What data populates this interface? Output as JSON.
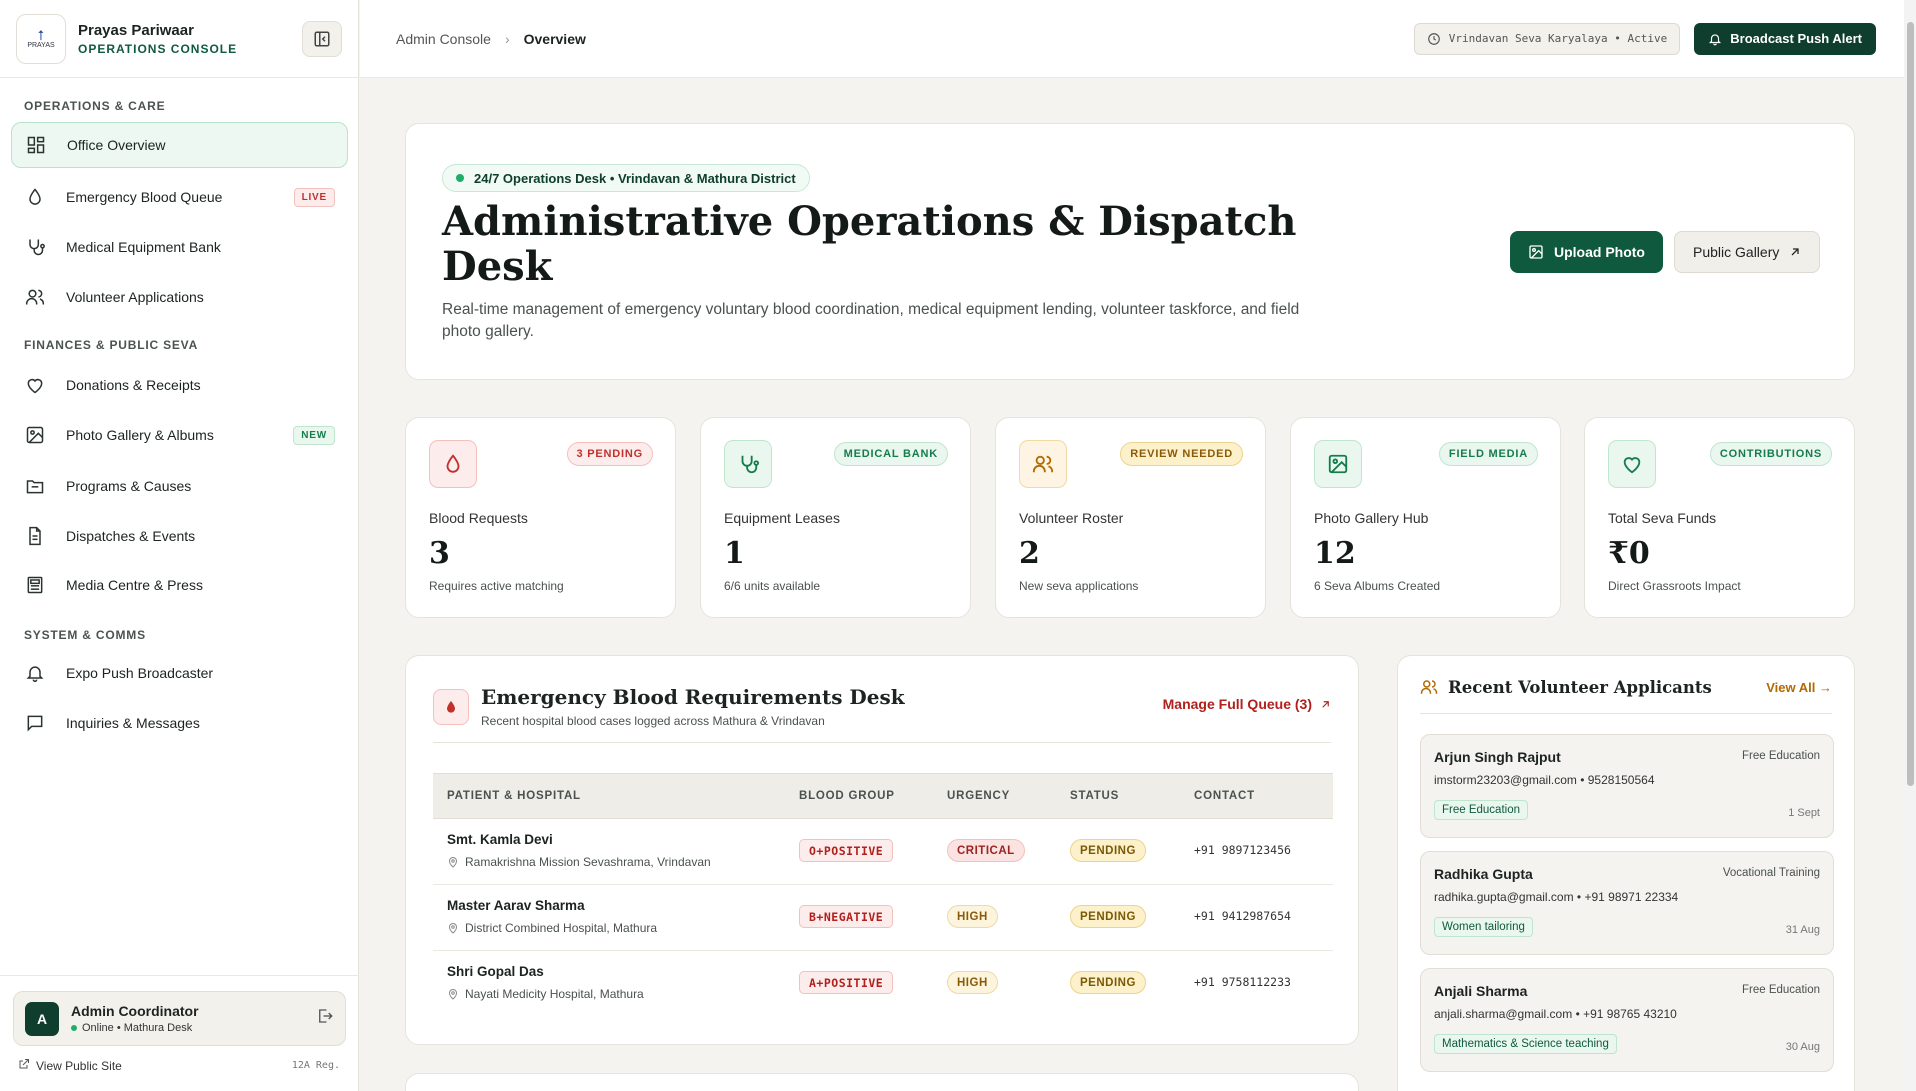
{
  "brand": {
    "name": "Prayas Pariwaar",
    "subtitle": "OPERATIONS CONSOLE",
    "logo_text": "PRAYAS"
  },
  "sidebar": {
    "sections": [
      "OPERATIONS & CARE",
      "FINANCES & PUBLIC SEVA",
      "SYSTEM & COMMS"
    ],
    "items": [
      {
        "label": "Office Overview",
        "icon": "grid-icon",
        "active": true
      },
      {
        "label": "Emergency Blood Queue",
        "icon": "droplet-icon",
        "badge": "LIVE"
      },
      {
        "label": "Medical Equipment Bank",
        "icon": "stethoscope-icon"
      },
      {
        "label": "Volunteer Applications",
        "icon": "users-icon"
      },
      {
        "label": "Donations & Receipts",
        "icon": "heart-icon"
      },
      {
        "label": "Photo Gallery & Albums",
        "icon": "image-icon",
        "badge": "NEW"
      },
      {
        "label": "Programs & Causes",
        "icon": "folder-icon"
      },
      {
        "label": "Dispatches & Events",
        "icon": "document-icon"
      },
      {
        "label": "Media Centre & Press",
        "icon": "newspaper-icon"
      },
      {
        "label": "Expo Push Broadcaster",
        "icon": "bell-icon"
      },
      {
        "label": "Inquiries & Messages",
        "icon": "message-icon"
      }
    ],
    "user": {
      "initial": "A",
      "name": "Admin Coordinator",
      "status": "Online • Mathura Desk"
    },
    "footer": {
      "link": "View Public Site",
      "reg": "12A Reg."
    }
  },
  "topbar": {
    "breadcrumb": [
      "Admin Console",
      "Overview"
    ],
    "office_status": "Vrindavan Seva Karyalaya • Active",
    "broadcast_label": "Broadcast Push Alert"
  },
  "hero": {
    "chip": "24/7 Operations Desk • Vrindavan & Mathura District",
    "title": "Administrative Operations & Dispatch Desk",
    "description": "Real-time management of emergency voluntary blood coordination, medical equipment lending, volunteer taskforce, and field photo gallery.",
    "upload_label": "Upload Photo",
    "gallery_label": "Public Gallery"
  },
  "stats": [
    {
      "tag": "3 PENDING",
      "label": "Blood Requests",
      "value": "3",
      "sub": "Requires active matching",
      "icon": "droplet-icon",
      "accent": "#c0312c"
    },
    {
      "tag": "MEDICAL BANK",
      "label": "Equipment Leases",
      "value": "1",
      "sub": "6/6 units available",
      "icon": "stethoscope-icon",
      "accent": "#167c4c"
    },
    {
      "tag": "REVIEW NEEDED",
      "label": "Volunteer Roster",
      "value": "2",
      "sub": "New seva applications",
      "icon": "users-icon",
      "accent": "#b26a00"
    },
    {
      "tag": "FIELD MEDIA",
      "label": "Photo Gallery Hub",
      "value": "12",
      "sub": "6 Seva Albums Created",
      "icon": "image-icon",
      "accent": "#167c4c"
    },
    {
      "tag": "CONTRIBUTIONS",
      "label": "Total Seva Funds",
      "value": "₹0",
      "sub": "Direct Grassroots Impact",
      "icon": "heart-icon",
      "accent": "#167c4c"
    }
  ],
  "blood_desk": {
    "title": "Emergency Blood Requirements Desk",
    "subtitle": "Recent hospital blood cases logged across Mathura & Vrindavan",
    "manage_label": "Manage Full Queue (3)",
    "columns": [
      "PATIENT & HOSPITAL",
      "BLOOD GROUP",
      "URGENCY",
      "STATUS",
      "CONTACT"
    ],
    "rows": [
      {
        "patient": "Smt. Kamla Devi",
        "hospital": "Ramakrishna Mission Sevashrama, Vrindavan",
        "blood": "O+POSITIVE",
        "urgency": "CRITICAL",
        "status": "PENDING",
        "contact": "+91  9897123456"
      },
      {
        "patient": "Master Aarav Sharma",
        "hospital": "District Combined Hospital, Mathura",
        "blood": "B+NEGATIVE",
        "urgency": "HIGH",
        "status": "PENDING",
        "contact": "+91  9412987654"
      },
      {
        "patient": "Shri Gopal Das",
        "hospital": "Nayati Medicity Hospital, Mathura",
        "blood": "A+POSITIVE",
        "urgency": "HIGH",
        "status": "PENDING",
        "contact": "+91  9758112233"
      }
    ]
  },
  "volunteers": {
    "title": "Recent Volunteer Applicants",
    "view_all": "View All →",
    "items": [
      {
        "name": "Arjun Singh Rajput",
        "program": "Free Education",
        "contact": "imstorm23203@gmail.com • 9528150564",
        "tag": "Free Education",
        "date": "1 Sept"
      },
      {
        "name": "Radhika Gupta",
        "program": "Vocational Training",
        "contact": "radhika.gupta@gmail.com • +91 98971 22334",
        "tag": "Women tailoring",
        "date": "31 Aug"
      },
      {
        "name": "Anjali Sharma",
        "program": "Free Education",
        "contact": "anjali.sharma@gmail.com • +91 98765 43210",
        "tag": "Mathematics & Science teaching",
        "date": "30 Aug"
      }
    ]
  }
}
